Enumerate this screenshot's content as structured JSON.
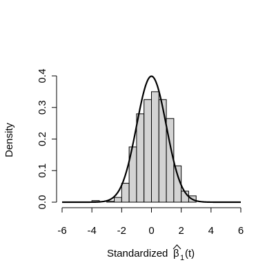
{
  "chart_data": {
    "type": "bar",
    "subtype": "histogram-with-density-curve",
    "xlabel": "Standardized",
    "xlabel_math": {
      "symbol": "β",
      "subscript": "1",
      "argument": "(t)",
      "accent": "hat"
    },
    "ylabel": "Density",
    "xlim": [
      -6,
      6
    ],
    "ylim": [
      0,
      0.4
    ],
    "x_ticks": [
      -6,
      -4,
      -2,
      0,
      2,
      4,
      6
    ],
    "x_tick_labels": [
      "-6",
      "-4",
      "-2",
      "0",
      "2",
      "4",
      "6"
    ],
    "y_ticks": [
      0,
      0.1,
      0.2,
      0.3,
      0.4
    ],
    "y_tick_labels": [
      "0.0",
      "0.1",
      "0.2",
      "0.3",
      "0.4"
    ],
    "grid": false,
    "bin_width": 0.5,
    "bins": [
      {
        "start": -4.0,
        "end": -3.5,
        "density": 0.005
      },
      {
        "start": -3.5,
        "end": -3.0,
        "density": 0.0
      },
      {
        "start": -3.0,
        "end": -2.5,
        "density": 0.003
      },
      {
        "start": -2.5,
        "end": -2.0,
        "density": 0.015
      },
      {
        "start": -2.0,
        "end": -1.5,
        "density": 0.06
      },
      {
        "start": -1.5,
        "end": -1.0,
        "density": 0.175
      },
      {
        "start": -1.0,
        "end": -0.5,
        "density": 0.28
      },
      {
        "start": -0.5,
        "end": 0.0,
        "density": 0.325
      },
      {
        "start": 0.0,
        "end": 0.5,
        "density": 0.35
      },
      {
        "start": 0.5,
        "end": 1.0,
        "density": 0.325
      },
      {
        "start": 1.0,
        "end": 1.5,
        "density": 0.265
      },
      {
        "start": 1.5,
        "end": 2.0,
        "density": 0.115
      },
      {
        "start": 2.0,
        "end": 2.5,
        "density": 0.035
      },
      {
        "start": 2.5,
        "end": 3.0,
        "density": 0.02
      },
      {
        "start": 3.0,
        "end": 3.5,
        "density": 0.0
      }
    ],
    "curve": {
      "type": "normal-density",
      "mean": 0,
      "sd": 1,
      "range": [
        -6,
        6
      ]
    },
    "colors": {
      "bar_fill": "#d3d3d3",
      "bar_stroke": "#000000",
      "curve": "#000000",
      "axis": "#000000"
    }
  }
}
